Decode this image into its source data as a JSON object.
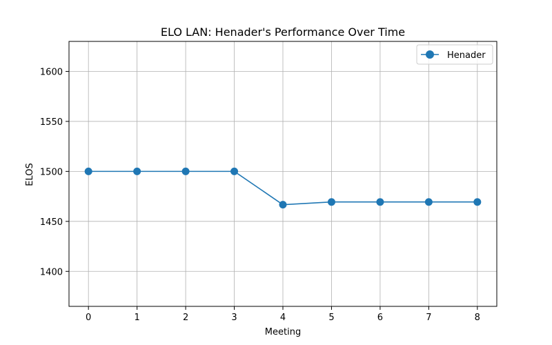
{
  "chart_data": {
    "type": "line",
    "title": "ELO LAN: Henader's Performance Over Time",
    "xlabel": "Meeting",
    "ylabel": "ELOS",
    "x": [
      0,
      1,
      2,
      3,
      4,
      5,
      6,
      7,
      8
    ],
    "series": [
      {
        "name": "Henader",
        "color": "#1f77b4",
        "marker": "circle",
        "values": [
          1500,
          1500,
          1500,
          1500,
          1466.7,
          1469.4,
          1469.4,
          1469.4,
          1469.4
        ]
      }
    ],
    "xlim": [
      -0.4,
      8.4
    ],
    "ylim": [
      1365,
      1630
    ],
    "xticks": [
      0,
      1,
      2,
      3,
      4,
      5,
      6,
      7,
      8
    ],
    "yticks": [
      1400,
      1450,
      1500,
      1550,
      1600
    ],
    "grid": true,
    "legend": "top-right"
  }
}
